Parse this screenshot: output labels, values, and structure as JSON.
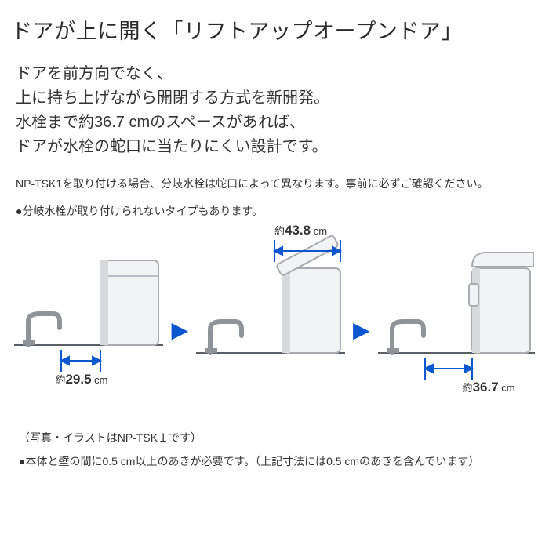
{
  "title": "ドアが上に開く「リフトアップオープンドア」",
  "description": "ドアを前方向でなく、\n上に持ち上げながら開閉する方式を新開発。\n水栓まで約36.7 cmのスペースがあれば、\nドアが水栓の蛇口に当たりにくい設計です。",
  "note1": "NP-TSK1を取り付ける場合、分岐水栓は蛇口によって異なります。事前に必ずご確認ください。",
  "note2": "●分岐水栓が取り付けられないタイプもあります。",
  "footnote1": "（写真・イラストはNP-TSK１です）",
  "footnote2": "●本体と壁の間に0.5 cm以上のあきが必要です。（上記寸法には0.5 cmのあきを含んでいます）",
  "diagram": {
    "panels": [
      {
        "label_prefix": "約",
        "value": "29.5",
        "unit": " cm",
        "label_pos": "bottom"
      },
      {
        "label_prefix": "約",
        "value": "43.8",
        "unit": " cm",
        "label_pos": "top"
      },
      {
        "label_prefix": "約",
        "value": "36.7",
        "unit": " cm",
        "label_pos": "bottom"
      }
    ],
    "arrow_color": "#0b57d0",
    "appliance_fill": "#f2f3f4",
    "appliance_stroke": "#a8abb0",
    "faucet_color": "#8f9499",
    "counter_color": "#5a5f66",
    "tick_color": "#5b5f66"
  }
}
